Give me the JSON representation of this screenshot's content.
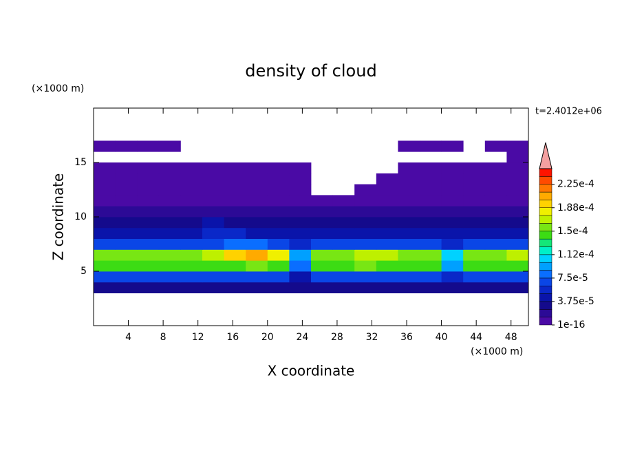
{
  "chart_data": {
    "type": "contour",
    "title": "density of cloud",
    "xlabel": "X coordinate",
    "ylabel": "Z coordinate",
    "x_unit": "(×1000 m)",
    "y_unit": "(×1000 m)",
    "time_label": "t=2.4012e+06",
    "xlim": [
      0,
      50
    ],
    "ylim": [
      0,
      20
    ],
    "xticks": [
      4,
      8,
      12,
      16,
      20,
      24,
      28,
      32,
      36,
      40,
      44,
      48
    ],
    "yticks": [
      5,
      10,
      15
    ],
    "x": [
      1.25,
      3.75,
      6.25,
      8.75,
      11.25,
      13.75,
      16.25,
      18.75,
      21.25,
      23.75,
      26.25,
      28.75,
      31.25,
      33.75,
      36.25,
      38.75,
      41.25,
      43.75,
      46.25,
      48.75
    ],
    "y": [
      0.5,
      1.5,
      2.5,
      3.5,
      4.5,
      5.5,
      6.5,
      7.5,
      8.5,
      9.5,
      10.5,
      11.5,
      12.5,
      13.5,
      14.5,
      15.5,
      16.5,
      17.5,
      18.5,
      19.5
    ],
    "values": [
      [
        0,
        0,
        0,
        0,
        0,
        0,
        0,
        0,
        0,
        0,
        0,
        0,
        0,
        0,
        0,
        0,
        0,
        0,
        0,
        0
      ],
      [
        0,
        0,
        0,
        0,
        0,
        0,
        0,
        0,
        0,
        0,
        0,
        0,
        0,
        0,
        0,
        0,
        0,
        0,
        0,
        0
      ],
      [
        0,
        0,
        0,
        0,
        0,
        0,
        0,
        0,
        0,
        0,
        0,
        0,
        0,
        0,
        0,
        0,
        0,
        0,
        0,
        0
      ],
      [
        2.5e-05,
        2.5e-05,
        2.5e-05,
        2.5e-05,
        2.5e-05,
        2.5e-05,
        2.5e-05,
        2.5e-05,
        2.5e-05,
        2.5e-05,
        2.5e-05,
        2.5e-05,
        2.5e-05,
        2.5e-05,
        2.5e-05,
        2.5e-05,
        2.5e-05,
        2.5e-05,
        2.5e-05,
        2.5e-05
      ],
      [
        7e-05,
        7e-05,
        7e-05,
        7e-05,
        7e-05,
        7e-05,
        7e-05,
        7e-05,
        7e-05,
        4e-05,
        7e-05,
        7e-05,
        7e-05,
        7e-05,
        7e-05,
        7e-05,
        5e-05,
        7e-05,
        7e-05,
        7e-05
      ],
      [
        0.00014,
        0.00014,
        0.00014,
        0.00014,
        0.00014,
        0.00014,
        0.00014,
        0.00015,
        0.00014,
        8e-05,
        0.00014,
        0.00014,
        0.00015,
        0.00014,
        0.00014,
        0.00014,
        9e-05,
        0.00014,
        0.00014,
        0.00014
      ],
      [
        0.00016,
        0.00016,
        0.00016,
        0.00016,
        0.00016,
        0.00017,
        0.00019,
        0.0002,
        0.00018,
        9e-05,
        0.00016,
        0.00016,
        0.00017,
        0.00017,
        0.00016,
        0.00016,
        0.0001,
        0.00016,
        0.00016,
        0.00017
      ],
      [
        7e-05,
        7e-05,
        7e-05,
        7e-05,
        7e-05,
        7e-05,
        8e-05,
        8e-05,
        7e-05,
        6e-05,
        7e-05,
        7e-05,
        7e-05,
        7e-05,
        7e-05,
        7e-05,
        6e-05,
        7e-05,
        7e-05,
        7e-05
      ],
      [
        4.5e-05,
        4.5e-05,
        4.5e-05,
        4.5e-05,
        4.5e-05,
        5e-05,
        5e-05,
        4.5e-05,
        4.5e-05,
        4.5e-05,
        4.5e-05,
        4.5e-05,
        4.5e-05,
        4.5e-05,
        4.5e-05,
        4.5e-05,
        4.5e-05,
        4.5e-05,
        4.5e-05,
        4.5e-05
      ],
      [
        3.5e-05,
        3.5e-05,
        3e-05,
        3.5e-05,
        3.5e-05,
        4e-05,
        3.5e-05,
        3e-05,
        3.5e-05,
        3.5e-05,
        3e-05,
        3.5e-05,
        3.5e-05,
        3.5e-05,
        3e-05,
        3.5e-05,
        3.5e-05,
        3e-05,
        3.5e-05,
        3.5e-05
      ],
      [
        2e-05,
        2e-05,
        2e-05,
        2e-05,
        2e-05,
        2e-05,
        2e-05,
        2e-05,
        2e-05,
        2e-05,
        2e-05,
        2e-05,
        2e-05,
        2e-05,
        2e-05,
        2e-05,
        2e-05,
        2e-05,
        2e-05,
        2e-05
      ],
      [
        1.2e-05,
        1.2e-05,
        1.2e-05,
        1.2e-05,
        1.2e-05,
        1.2e-05,
        1.2e-05,
        1.2e-05,
        1.2e-05,
        1.2e-05,
        1.2e-05,
        1.2e-05,
        1.2e-05,
        1.2e-05,
        1.2e-05,
        1.2e-05,
        1.2e-05,
        1.2e-05,
        1.2e-05,
        1.2e-05
      ],
      [
        8e-06,
        8e-06,
        8e-06,
        8e-06,
        8e-06,
        8e-06,
        8e-06,
        8e-06,
        8e-06,
        8e-06,
        0,
        0,
        8e-06,
        8e-06,
        8e-06,
        8e-06,
        8e-06,
        8e-06,
        8e-06,
        8e-06
      ],
      [
        6e-06,
        6e-06,
        6e-06,
        6e-06,
        6e-06,
        6e-06,
        6e-06,
        6e-06,
        6e-06,
        5e-06,
        0,
        0,
        0,
        5e-06,
        6e-06,
        6e-06,
        6e-06,
        6e-06,
        6e-06,
        6e-06
      ],
      [
        5e-06,
        5e-06,
        5e-06,
        5e-06,
        5e-06,
        5e-06,
        5e-06,
        5e-06,
        4e-06,
        4e-06,
        0,
        0,
        0,
        0,
        4e-06,
        4e-06,
        5e-06,
        5e-06,
        5e-06,
        5e-06
      ],
      [
        0,
        0,
        0,
        0,
        0,
        0,
        0,
        0,
        0,
        0,
        0,
        0,
        0,
        0,
        0,
        0,
        0,
        0,
        0,
        4e-06
      ],
      [
        4e-06,
        4e-06,
        4e-06,
        4e-06,
        0,
        0,
        0,
        0,
        0,
        0,
        0,
        0,
        0,
        0,
        4e-06,
        4e-06,
        4e-06,
        0,
        4e-06,
        4e-06
      ],
      [
        0,
        0,
        0,
        0,
        0,
        0,
        0,
        0,
        0,
        0,
        0,
        0,
        0,
        0,
        0,
        0,
        0,
        0,
        0,
        0
      ],
      [
        0,
        0,
        0,
        0,
        0,
        0,
        0,
        0,
        0,
        0,
        0,
        0,
        0,
        0,
        0,
        0,
        0,
        0,
        0,
        0
      ],
      [
        0,
        0,
        0,
        0,
        0,
        0,
        0,
        0,
        0,
        0,
        0,
        0,
        0,
        0,
        0,
        0,
        0,
        0,
        0,
        0
      ]
    ],
    "levels": [
      1e-16,
      1.25e-05,
      2.5e-05,
      3.75e-05,
      5e-05,
      6.25e-05,
      7.5e-05,
      8.75e-05,
      0.0001,
      0.0001125,
      0.000125,
      0.0001375,
      0.00015,
      0.0001625,
      0.000175,
      0.0001875,
      0.0002,
      0.0002125,
      0.000225,
      0.0002375,
      0.00025
    ],
    "colors": [
      "#4a0aa5",
      "#2c0a96",
      "#140a8c",
      "#0a14aa",
      "#0a28c8",
      "#0a46e6",
      "#0a6eff",
      "#00a0ff",
      "#00d2ff",
      "#00f0c8",
      "#14e678",
      "#3cdc14",
      "#78e614",
      "#bef000",
      "#f0f000",
      "#ffd200",
      "#ffaa00",
      "#ff7800",
      "#ff4b00",
      "#ff1400"
    ],
    "extend_color": "#f4a0a0",
    "cbar_ticks": [
      {
        "value": 1e-16,
        "label": "1e-16"
      },
      {
        "value": 3.75e-05,
        "label": "3.75e-5"
      },
      {
        "value": 7.5e-05,
        "label": "7.5e-5"
      },
      {
        "value": 0.0001125,
        "label": "1.12e-4"
      },
      {
        "value": 0.00015,
        "label": "1.5e-4"
      },
      {
        "value": 0.0001875,
        "label": "1.88e-4"
      },
      {
        "value": 0.000225,
        "label": "2.25e-4"
      }
    ]
  }
}
